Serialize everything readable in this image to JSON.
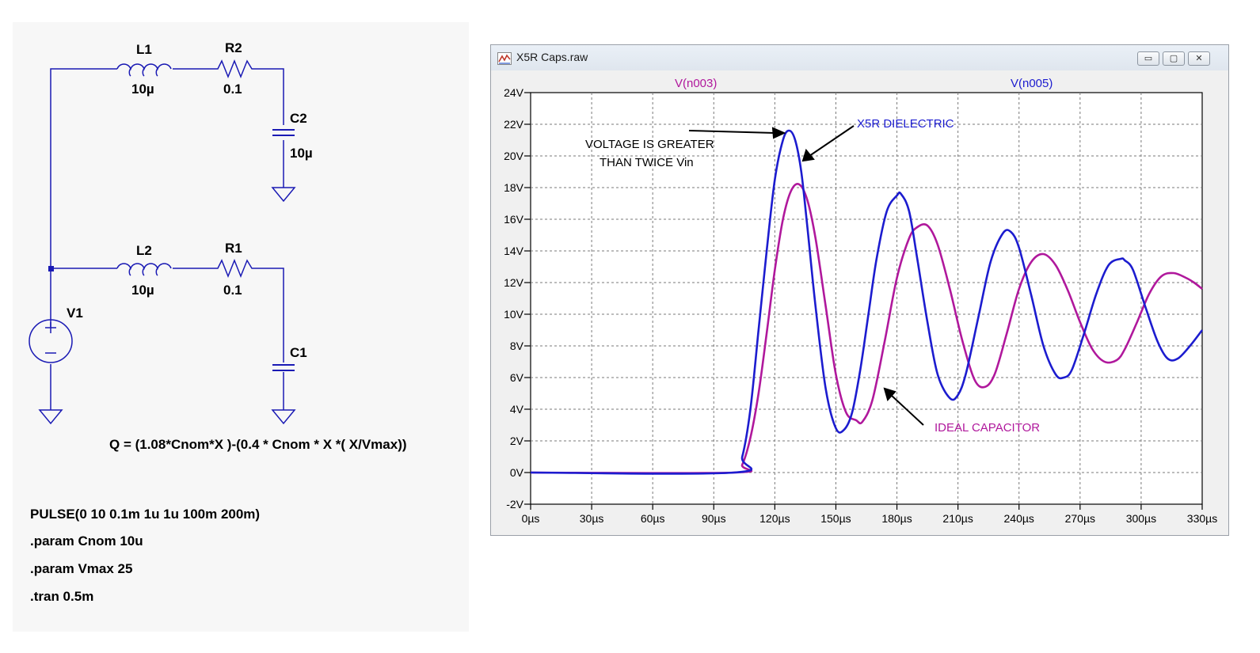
{
  "schematic": {
    "components": {
      "L1": {
        "name": "L1",
        "value": "10µ"
      },
      "R2": {
        "name": "R2",
        "value": "0.1"
      },
      "C2": {
        "name": "C2",
        "value": "10µ"
      },
      "L2": {
        "name": "L2",
        "value": "10µ"
      },
      "R1": {
        "name": "R1",
        "value": "0.1"
      },
      "C1": {
        "name": "C1",
        "value": ""
      },
      "V1": {
        "name": "V1"
      }
    },
    "formula": "Q = (1.08*Cnom*X )-(0.4 * Cnom * X *( X/Vmax))",
    "netlist": [
      "PULSE(0 10 0.1m 1u 1u 100m 200m)",
      ".param Cnom 10u",
      ".param Vmax 25",
      ".tran 0.5m"
    ]
  },
  "window": {
    "title": "X5R Caps.raw",
    "icon": "waveform-icon",
    "controls": {
      "minimize": "▭",
      "maximize": "▢",
      "close": "✕"
    }
  },
  "chart_data": {
    "type": "line",
    "x_unit": "µs",
    "y_unit": "V",
    "xlim": [
      0,
      330
    ],
    "ylim": [
      -2,
      24
    ],
    "x_ticks": [
      0,
      30,
      60,
      90,
      120,
      150,
      180,
      210,
      240,
      270,
      300,
      330
    ],
    "y_ticks": [
      -2,
      0,
      2,
      4,
      6,
      8,
      10,
      12,
      14,
      16,
      18,
      20,
      22,
      24
    ],
    "grid": true,
    "background": "#ffffff",
    "series": [
      {
        "name": "V(n003)",
        "color": "#b0189c",
        "x": [
          0,
          100,
          104,
          108,
          112,
          116,
          120,
          124,
          128,
          132,
          136,
          140,
          145,
          150,
          155,
          160,
          163,
          168,
          174,
          180,
          186,
          190,
          195,
          200,
          206,
          212,
          218,
          223,
          228,
          234,
          240,
          246,
          252,
          258,
          264,
          270,
          276,
          282,
          288,
          292,
          298,
          304,
          310,
          316,
          322,
          326,
          330
        ],
        "y": [
          0,
          0,
          0.5,
          2.2,
          5,
          8.8,
          12.8,
          16,
          17.8,
          18.2,
          17.2,
          14.8,
          10.5,
          6.2,
          3.8,
          3.3,
          3.2,
          4.6,
          8.3,
          12.3,
          14.8,
          15.5,
          15.6,
          14.4,
          11.6,
          8.4,
          5.9,
          5.4,
          6.2,
          8.8,
          11.6,
          13.3,
          13.8,
          13.1,
          11.5,
          9.5,
          7.8,
          7.0,
          7.1,
          7.8,
          9.5,
          11.3,
          12.4,
          12.6,
          12.3,
          12.0,
          11.6
        ]
      },
      {
        "name": "V(n005)",
        "color": "#1c1ccf",
        "x": [
          0,
          100,
          104,
          108,
          112,
          116,
          120,
          124,
          127,
          130,
          133,
          136,
          140,
          145,
          150,
          154,
          158,
          162,
          166,
          170,
          175,
          180,
          182,
          186,
          190,
          195,
          200,
          206,
          210,
          214,
          220,
          226,
          232,
          236,
          240,
          246,
          252,
          258,
          262,
          266,
          272,
          278,
          284,
          290,
          292,
          296,
          302,
          308,
          313,
          318,
          324,
          330
        ],
        "y": [
          0,
          0,
          1,
          4,
          9,
          14,
          18.5,
          21,
          21.6,
          21,
          19,
          15.5,
          10.5,
          5.3,
          2.8,
          2.7,
          3.8,
          6.5,
          10,
          13.5,
          16.5,
          17.5,
          17.6,
          16.5,
          13.5,
          9.5,
          6.2,
          4.7,
          4.9,
          6.3,
          9.8,
          13.3,
          15.1,
          15.2,
          14.2,
          11.2,
          8.0,
          6.2,
          6.0,
          6.5,
          8.8,
          11.3,
          13.1,
          13.5,
          13.4,
          12.8,
          10.5,
          8.3,
          7.2,
          7.2,
          8.0,
          9.0
        ]
      }
    ],
    "trace_labels": [
      {
        "text": "V(n003)",
        "color": "#b0189c"
      },
      {
        "text": "V(n005)",
        "color": "#1c1ccf"
      }
    ],
    "annotations": [
      {
        "text": "VOLTAGE IS GREATER",
        "color": "#000000"
      },
      {
        "text": "THAN TWICE Vin",
        "color": "#000000"
      },
      {
        "text": "X5R DIELECTRIC",
        "color": "#1c1ccf"
      },
      {
        "text": "IDEAL CAPACITOR",
        "color": "#b0189c"
      }
    ]
  }
}
